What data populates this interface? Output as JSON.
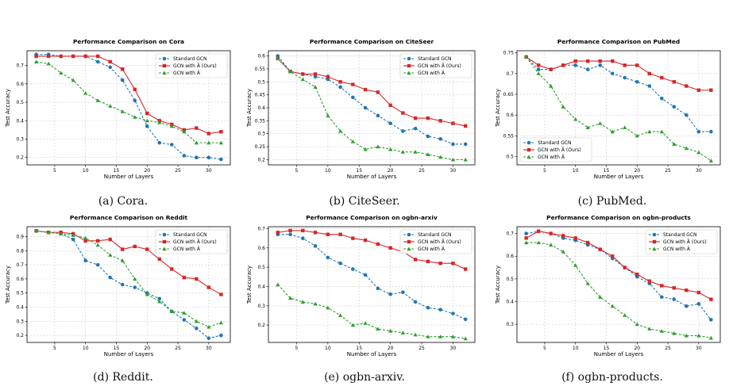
{
  "colors": {
    "standard": "#1f77b4",
    "ours": "#d62728",
    "atilde": "#2ca02c",
    "grid": "#cfcfcf"
  },
  "chart_data": [
    {
      "type": "line",
      "title": "Performance Comparison on Cora",
      "caption": "(a) Cora.",
      "xlabel": "Number of Layers",
      "ylabel": "Test Accuracy",
      "xlim": [
        0.5,
        33.5
      ],
      "ylim": [
        0.16,
        0.78
      ],
      "xticks": [
        5,
        10,
        15,
        20,
        25,
        30
      ],
      "yticks": [
        0.2,
        0.3,
        0.4,
        0.5,
        0.6,
        0.7
      ],
      "legend": "top-right",
      "grid": true,
      "x": [
        2,
        4,
        6,
        8,
        10,
        12,
        14,
        16,
        18,
        20,
        22,
        24,
        26,
        28,
        30,
        32
      ],
      "series": [
        {
          "name": "Standard GCN",
          "values": [
            0.76,
            0.76,
            0.75,
            0.75,
            0.75,
            0.72,
            0.69,
            0.62,
            0.51,
            0.37,
            0.28,
            0.27,
            0.21,
            0.2,
            0.2,
            0.19
          ]
        },
        {
          "name": "GCN with Ã (Ours)",
          "values": [
            0.75,
            0.75,
            0.75,
            0.75,
            0.75,
            0.75,
            0.72,
            0.68,
            0.57,
            0.44,
            0.4,
            0.38,
            0.35,
            0.36,
            0.33,
            0.34
          ]
        },
        {
          "name": "GCN with Â",
          "values": [
            0.72,
            0.71,
            0.66,
            0.62,
            0.55,
            0.51,
            0.48,
            0.45,
            0.42,
            0.4,
            0.39,
            0.37,
            0.34,
            0.28,
            0.28,
            0.28
          ]
        }
      ]
    },
    {
      "type": "line",
      "title": "Performance Comparison on CiteSeer",
      "caption": "(b) CiteSeer.",
      "xlabel": "Number of Layers",
      "ylabel": "Test Accuracy",
      "xlim": [
        0.5,
        33.5
      ],
      "ylim": [
        0.18,
        0.62
      ],
      "xticks": [
        5,
        10,
        15,
        20,
        25,
        30
      ],
      "yticks": [
        0.2,
        0.25,
        0.3,
        0.35,
        0.4,
        0.45,
        0.5,
        0.55,
        0.6
      ],
      "legend": "top-right",
      "grid": true,
      "x": [
        2,
        4,
        6,
        8,
        10,
        12,
        14,
        16,
        18,
        20,
        22,
        24,
        26,
        28,
        30,
        32
      ],
      "series": [
        {
          "name": "Standard GCN",
          "values": [
            0.6,
            0.54,
            0.53,
            0.52,
            0.51,
            0.48,
            0.44,
            0.4,
            0.37,
            0.34,
            0.31,
            0.32,
            0.29,
            0.28,
            0.26,
            0.26
          ]
        },
        {
          "name": "GCN with Ã (Ours)",
          "values": [
            0.59,
            0.54,
            0.53,
            0.53,
            0.52,
            0.5,
            0.49,
            0.47,
            0.46,
            0.41,
            0.38,
            0.36,
            0.36,
            0.35,
            0.34,
            0.33
          ]
        },
        {
          "name": "GCN with Â",
          "values": [
            0.59,
            0.54,
            0.51,
            0.48,
            0.37,
            0.31,
            0.27,
            0.24,
            0.25,
            0.24,
            0.23,
            0.23,
            0.22,
            0.21,
            0.2,
            0.2
          ]
        }
      ]
    },
    {
      "type": "line",
      "title": "Performance Comparison on PubMed",
      "caption": "(c) PubMed.",
      "xlabel": "Number of Layers",
      "ylabel": "Test Accuracy",
      "xlim": [
        0.5,
        33.5
      ],
      "ylim": [
        0.48,
        0.755
      ],
      "xticks": [
        5,
        10,
        15,
        20,
        25,
        30
      ],
      "yticks": [
        0.5,
        0.55,
        0.6,
        0.65,
        0.7,
        0.75
      ],
      "legend": "bottom-left",
      "grid": true,
      "x": [
        2,
        4,
        6,
        8,
        10,
        12,
        14,
        16,
        18,
        20,
        22,
        24,
        26,
        28,
        30,
        32
      ],
      "series": [
        {
          "name": "Standard GCN",
          "values": [
            0.74,
            0.71,
            0.71,
            0.72,
            0.72,
            0.71,
            0.72,
            0.7,
            0.69,
            0.68,
            0.67,
            0.64,
            0.62,
            0.6,
            0.56,
            0.56
          ]
        },
        {
          "name": "GCN with Ã (Ours)",
          "values": [
            0.74,
            0.72,
            0.71,
            0.72,
            0.73,
            0.73,
            0.73,
            0.73,
            0.72,
            0.72,
            0.7,
            0.69,
            0.68,
            0.67,
            0.66,
            0.66
          ]
        },
        {
          "name": "GCN with Â",
          "values": [
            0.74,
            0.7,
            0.67,
            0.62,
            0.59,
            0.57,
            0.58,
            0.56,
            0.57,
            0.55,
            0.56,
            0.56,
            0.53,
            0.52,
            0.51,
            0.49
          ]
        }
      ]
    },
    {
      "type": "line",
      "title": "Performance Comparison on Reddit",
      "caption": "(d) Reddit.",
      "xlabel": "Number of Layers",
      "ylabel": "Test Accuracy",
      "xlim": [
        0.5,
        33.5
      ],
      "ylim": [
        0.15,
        0.97
      ],
      "xticks": [
        5,
        10,
        15,
        20,
        25,
        30
      ],
      "yticks": [
        0.2,
        0.3,
        0.4,
        0.5,
        0.6,
        0.7,
        0.8,
        0.9
      ],
      "legend": "top-right",
      "grid": true,
      "x": [
        2,
        4,
        6,
        8,
        10,
        12,
        14,
        16,
        18,
        20,
        22,
        24,
        26,
        28,
        30,
        32
      ],
      "series": [
        {
          "name": "Standard GCN",
          "values": [
            0.94,
            0.93,
            0.92,
            0.88,
            0.73,
            0.7,
            0.61,
            0.56,
            0.54,
            0.5,
            0.46,
            0.37,
            0.31,
            0.25,
            0.18,
            0.2
          ]
        },
        {
          "name": "GCN with Ã (Ours)",
          "values": [
            0.94,
            0.93,
            0.93,
            0.92,
            0.87,
            0.87,
            0.88,
            0.81,
            0.83,
            0.81,
            0.74,
            0.67,
            0.61,
            0.6,
            0.54,
            0.49
          ]
        },
        {
          "name": "GCN with Â",
          "values": [
            0.94,
            0.93,
            0.92,
            0.91,
            0.89,
            0.84,
            0.77,
            0.73,
            0.6,
            0.49,
            0.44,
            0.37,
            0.36,
            0.3,
            0.26,
            0.29
          ]
        }
      ]
    },
    {
      "type": "line",
      "title": "Performance Comparison on ogbn-arxiv",
      "caption": "(e) ogbn-arxiv.",
      "xlabel": "Number of Layers",
      "ylabel": "Test Accuracy",
      "xlim": [
        0.5,
        33.5
      ],
      "ylim": [
        0.11,
        0.71
      ],
      "xticks": [
        5,
        10,
        15,
        20,
        25,
        30
      ],
      "yticks": [
        0.2,
        0.3,
        0.4,
        0.5,
        0.6,
        0.7
      ],
      "legend": "top-right",
      "grid": true,
      "x": [
        2,
        4,
        6,
        8,
        10,
        12,
        14,
        16,
        18,
        20,
        22,
        24,
        26,
        28,
        30,
        32
      ],
      "series": [
        {
          "name": "Standard GCN",
          "values": [
            0.67,
            0.67,
            0.65,
            0.61,
            0.55,
            0.52,
            0.49,
            0.46,
            0.39,
            0.36,
            0.37,
            0.32,
            0.29,
            0.28,
            0.26,
            0.23
          ]
        },
        {
          "name": "GCN with Ã (Ours)",
          "values": [
            0.68,
            0.69,
            0.69,
            0.68,
            0.67,
            0.67,
            0.65,
            0.64,
            0.62,
            0.6,
            0.58,
            0.54,
            0.53,
            0.52,
            0.52,
            0.49
          ]
        },
        {
          "name": "GCN with Â",
          "values": [
            0.41,
            0.34,
            0.32,
            0.31,
            0.29,
            0.25,
            0.2,
            0.21,
            0.18,
            0.17,
            0.16,
            0.15,
            0.14,
            0.14,
            0.14,
            0.13
          ]
        }
      ]
    },
    {
      "type": "line",
      "title": "Performance Comparison on ogbn-products",
      "caption": "(f) ogbn-products.",
      "xlabel": "Number of Layers",
      "ylabel": "Test Accuracy",
      "xlim": [
        0.5,
        33.5
      ],
      "ylim": [
        0.22,
        0.73
      ],
      "xticks": [
        5,
        10,
        15,
        20,
        25,
        30
      ],
      "yticks": [
        0.3,
        0.4,
        0.5,
        0.6,
        0.7
      ],
      "legend": "top-right",
      "grid": true,
      "x": [
        2,
        4,
        6,
        8,
        10,
        12,
        14,
        16,
        18,
        20,
        22,
        24,
        26,
        28,
        30,
        32
      ],
      "series": [
        {
          "name": "Standard GCN",
          "values": [
            0.7,
            0.71,
            0.7,
            0.68,
            0.67,
            0.65,
            0.63,
            0.59,
            0.55,
            0.51,
            0.48,
            0.42,
            0.41,
            0.38,
            0.39,
            0.32
          ]
        },
        {
          "name": "GCN with Ã (Ours)",
          "values": [
            0.68,
            0.71,
            0.7,
            0.69,
            0.68,
            0.66,
            0.63,
            0.6,
            0.55,
            0.52,
            0.49,
            0.47,
            0.46,
            0.45,
            0.44,
            0.41
          ]
        },
        {
          "name": "GCN with Â",
          "values": [
            0.66,
            0.66,
            0.65,
            0.62,
            0.56,
            0.48,
            0.42,
            0.38,
            0.34,
            0.3,
            0.28,
            0.27,
            0.26,
            0.25,
            0.25,
            0.24
          ]
        }
      ]
    }
  ]
}
